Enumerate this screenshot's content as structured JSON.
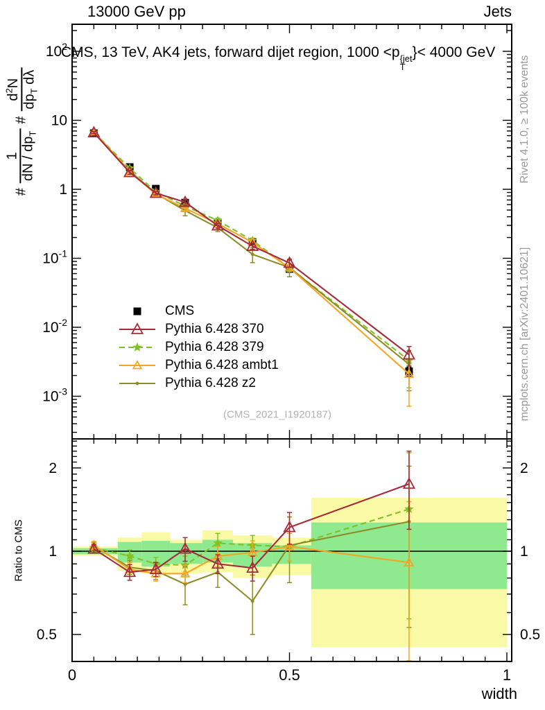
{
  "header": {
    "left": "13000 GeV pp",
    "right": "Jets"
  },
  "title": {
    "pre": "CMS, 13 TeV, AK4 jets, forward dijet region, 1000 <p",
    "sup": "{jet",
    "sub": "T",
    "post": "}< 4000 GeV"
  },
  "ylabel": {
    "hash1": "#",
    "frac1": {
      "num": "1",
      "den_main": "dN / dp",
      "den_sub": "T"
    },
    "hash2": "#",
    "frac2": {
      "num_main": "d",
      "num_sup": "2",
      "num_post": "N",
      "den_main": "dp",
      "den_sub": "T",
      "den_post": " dλ"
    }
  },
  "captions": {
    "rivet": "Rivet 4.1.0, ≥ 100k events",
    "mcplots": "mcplots.cern.ch [arXiv:2401.10621]",
    "watermark": "(CMS_2021_I1920187)"
  },
  "axis": {
    "x": {
      "label": "width",
      "range": [
        0,
        1
      ],
      "minor_step": 0.05,
      "major_ticks": [
        {
          "v": 0,
          "label": "0"
        },
        {
          "v": 0.5,
          "label": "0.5"
        },
        {
          "v": 1,
          "label": "1"
        }
      ]
    },
    "y_main": {
      "ticks": [
        {
          "v": 100,
          "base": "10",
          "exp": "2"
        },
        {
          "v": 10,
          "base": "10",
          "exp": ""
        },
        {
          "v": 1,
          "base": "1",
          "exp": ""
        },
        {
          "v": 0.1,
          "base": "10",
          "exp": "-1"
        },
        {
          "v": 0.01,
          "base": "10",
          "exp": "-2"
        },
        {
          "v": 0.001,
          "base": "10",
          "exp": "-3"
        }
      ]
    },
    "y_ratio": {
      "label": "Ratio to CMS",
      "ticks": [
        {
          "v": 2,
          "label": "2"
        },
        {
          "v": 1,
          "label": "1"
        },
        {
          "v": 0.5,
          "label": "0.5"
        }
      ]
    }
  },
  "legend": {
    "items": [
      {
        "label": "CMS",
        "series": "cms"
      },
      {
        "label": "Pythia 6.428 370",
        "series": "p370"
      },
      {
        "label": "Pythia 6.428 379",
        "series": "p379"
      },
      {
        "label": "Pythia 6.428 ambt1",
        "series": "ambt1"
      },
      {
        "label": "Pythia 6.428 z2",
        "series": "z2"
      }
    ]
  },
  "colors": {
    "cms": "#000000",
    "p370": "#a62b38",
    "p379": "#7fc223",
    "ambt1": "#f5a423",
    "z2": "#8d8d27",
    "band_yellow": "#f9f9a6",
    "band_green": "#8fe98f",
    "caption_gray": "#999999",
    "watermark_gray": "#b3b3b3"
  },
  "chart_data": {
    "type": "line",
    "title": "CMS, 13 TeV, AK4 jets, forward dijet region, 1000 <pT{jet}< 4000 GeV",
    "xlabel": "width",
    "ylabel": "# 1/(dN/dp_T) # d^2N/(dp_T dlambda)",
    "ratio_ylabel": "Ratio to CMS",
    "xlim": [
      0,
      1
    ],
    "ylim_main": [
      0.00024,
      244
    ],
    "ylim_ratio": [
      0.4,
      2.55
    ],
    "x": [
      0.05,
      0.1325,
      0.1925,
      0.26,
      0.335,
      0.415,
      0.5,
      0.775
    ],
    "bin_edges": [
      0,
      0.105,
      0.16,
      0.225,
      0.3,
      0.37,
      0.46,
      0.55,
      1.0
    ],
    "series": [
      {
        "key": "cms",
        "name": "CMS",
        "marker": "square",
        "msize": 11,
        "line": "none",
        "values": [
          6.5,
          2.1,
          1.02,
          0.64,
          0.33,
          0.172,
          0.07,
          0.0023
        ],
        "rel_err": [
          0.02,
          0.02,
          0.025,
          0.03,
          0.04,
          0.05,
          0.06,
          0.15
        ]
      },
      {
        "key": "p379",
        "name": "Pythia 6.428 379",
        "marker": "star",
        "msize": 7,
        "line": "dashed",
        "values": [
          6.7,
          2.02,
          0.92,
          0.57,
          0.353,
          0.181,
          0.0728,
          0.0033
        ],
        "ratio": [
          1.03,
          0.96,
          0.9,
          0.89,
          1.07,
          1.05,
          1.04,
          1.42
        ],
        "ratio_err": [
          0.035,
          0.05,
          0.05,
          0.07,
          0.09,
          0.09,
          0.12,
          0.85
        ]
      },
      {
        "key": "z2",
        "name": "Pythia 6.428 z2",
        "marker": "dot",
        "msize": 2.4,
        "line": "solid",
        "values": [
          6.76,
          1.84,
          0.87,
          0.49,
          0.277,
          0.114,
          0.0735,
          0.0029
        ],
        "ratio": [
          1.04,
          0.875,
          0.85,
          0.76,
          0.84,
          0.66,
          1.05,
          1.28
        ],
        "ratio_err": [
          0.035,
          0.05,
          0.06,
          0.12,
          0.1,
          0.16,
          0.28,
          0.75
        ]
      },
      {
        "key": "ambt1",
        "name": "Pythia 6.428 ambt1",
        "marker": "triangle",
        "msize": 6,
        "line": "solid",
        "values": [
          6.83,
          1.81,
          0.85,
          0.53,
          0.317,
          0.17,
          0.0728,
          0.0021
        ],
        "ratio": [
          1.05,
          0.86,
          0.83,
          0.83,
          0.96,
          0.99,
          1.04,
          0.91
        ],
        "ratio_err": [
          0.035,
          0.05,
          0.05,
          0.06,
          0.08,
          0.1,
          0.12,
          0.6
        ]
      },
      {
        "key": "p370",
        "name": "Pythia 6.428 370",
        "marker": "triangle",
        "msize": 8,
        "line": "solid",
        "values": [
          6.63,
          1.76,
          0.88,
          0.65,
          0.297,
          0.15,
          0.0854,
          0.004
        ],
        "ratio": [
          1.02,
          0.84,
          0.86,
          1.02,
          0.9,
          0.87,
          1.22,
          1.75
        ],
        "ratio_err": [
          0.035,
          0.055,
          0.05,
          0.1,
          0.07,
          0.09,
          0.16,
          0.55
        ]
      }
    ],
    "ratio_bands": {
      "yellow_lo": [
        0.96,
        0.85,
        0.83,
        0.83,
        0.84,
        0.8,
        0.82,
        0.45
      ],
      "yellow_hi": [
        1.04,
        1.12,
        1.17,
        1.1,
        1.19,
        1.14,
        1.12,
        1.56
      ],
      "green_lo": [
        0.975,
        0.91,
        0.88,
        0.9,
        0.91,
        0.88,
        0.9,
        0.73
      ],
      "green_hi": [
        1.025,
        1.08,
        1.09,
        1.07,
        1.1,
        1.07,
        1.05,
        1.27
      ]
    },
    "legend_position": "middle-left",
    "grid": false
  }
}
